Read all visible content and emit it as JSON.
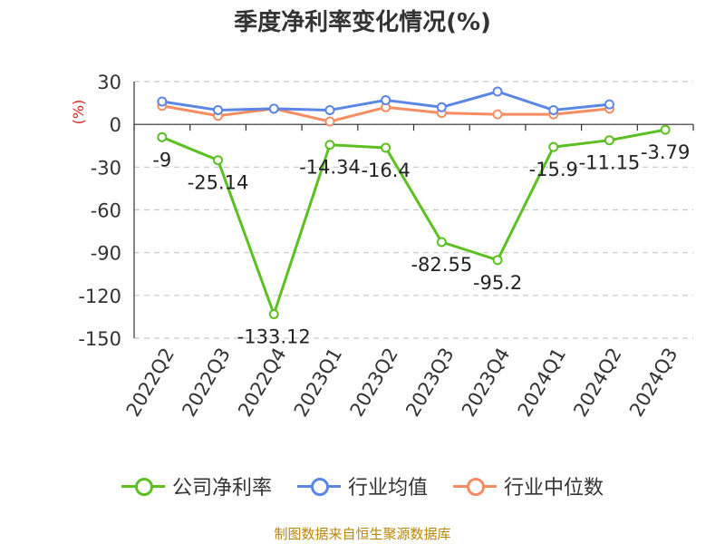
{
  "chart_data": {
    "type": "line",
    "title": "季度净利率变化情况(%)",
    "ylabel": "(%)",
    "ylim": [
      -150,
      30
    ],
    "yticks": [
      30,
      0,
      -30,
      -60,
      -90,
      -120,
      -150
    ],
    "categories": [
      "2022Q2",
      "2022Q3",
      "2022Q4",
      "2023Q1",
      "2023Q2",
      "2023Q3",
      "2023Q4",
      "2024Q1",
      "2024Q2",
      "2024Q3"
    ],
    "series": [
      {
        "name": "公司净利率",
        "color": "#5cc022",
        "values": [
          -9,
          -25.14,
          -133.12,
          -14.34,
          -16.4,
          -82.55,
          -95.2,
          -15.9,
          -11.15,
          -3.79
        ],
        "labels": [
          "-9",
          "-25.14",
          "-133.12",
          "-14.34",
          "-16.4",
          "-82.55",
          "-95.2",
          "-15.9",
          "-11.15",
          "-3.79"
        ]
      },
      {
        "name": "行业均值",
        "color": "#5b86e5",
        "values": [
          16,
          10,
          11,
          10,
          17,
          12,
          23,
          10,
          14,
          null
        ]
      },
      {
        "name": "行业中位数",
        "color": "#f58d63",
        "values": [
          13,
          6,
          11,
          2,
          12,
          8,
          7,
          7,
          11,
          null
        ]
      }
    ],
    "grid": true,
    "legend_position": "bottom"
  },
  "footer": {
    "source": "制图数据来自恒生聚源数据库"
  }
}
